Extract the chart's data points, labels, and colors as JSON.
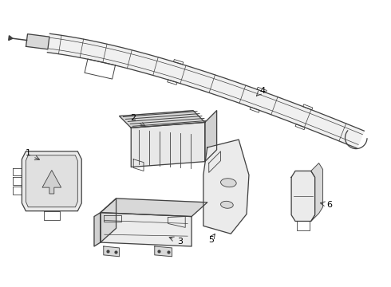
{
  "background_color": "#ffffff",
  "line_color": "#404040",
  "fig_width": 4.9,
  "fig_height": 3.6,
  "dpi": 100
}
